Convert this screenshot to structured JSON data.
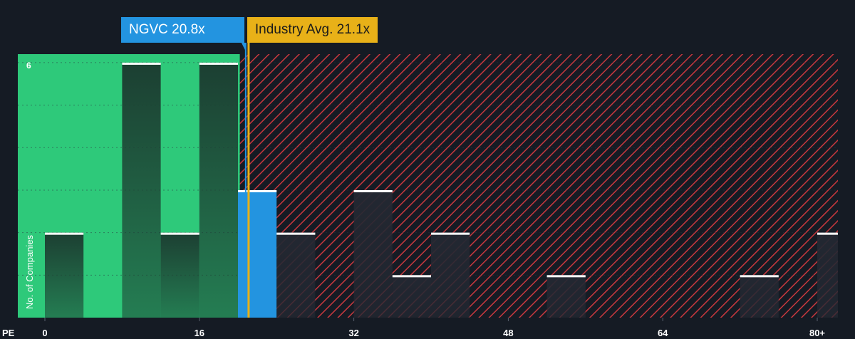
{
  "colors": {
    "background": "#151b24",
    "undervalued": "#2ec97a",
    "overvalued": "#c8383e",
    "company": "#2394e0",
    "industry": "#e8b118",
    "bar": "#1f4436",
    "bar_over": "#252a33",
    "bar_top": "#ffffff",
    "grid": "#2a3340",
    "text": "#ffffff"
  },
  "callouts": {
    "company_label": "NGVC 20.8x",
    "industry_label": "Industry Avg. 21.1x"
  },
  "chart_data": {
    "type": "bar",
    "title": "",
    "xlabel": "PE",
    "ylabel": "No. of Companies",
    "x_ticks": [
      0,
      16,
      32,
      48,
      64,
      80
    ],
    "x_tick_labels": [
      "0",
      "16",
      "32",
      "48",
      "64",
      "80+"
    ],
    "y_ticks": [
      6
    ],
    "y_tick_labels": [
      "6"
    ],
    "xlim": [
      0,
      82
    ],
    "ylim": [
      0,
      6.2
    ],
    "bin_width": 4,
    "bins": [
      {
        "start": 0,
        "end": 4,
        "count": 2
      },
      {
        "start": 4,
        "end": 8,
        "count": 0
      },
      {
        "start": 8,
        "end": 12,
        "count": 6
      },
      {
        "start": 12,
        "end": 16,
        "count": 2
      },
      {
        "start": 16,
        "end": 20,
        "count": 6
      },
      {
        "start": 20,
        "end": 24,
        "count": 3,
        "highlight": true
      },
      {
        "start": 24,
        "end": 28,
        "count": 2
      },
      {
        "start": 28,
        "end": 32,
        "count": 0
      },
      {
        "start": 32,
        "end": 36,
        "count": 3
      },
      {
        "start": 36,
        "end": 40,
        "count": 1
      },
      {
        "start": 40,
        "end": 44,
        "count": 2
      },
      {
        "start": 44,
        "end": 48,
        "count": 0
      },
      {
        "start": 48,
        "end": 52,
        "count": 0
      },
      {
        "start": 52,
        "end": 56,
        "count": 1
      },
      {
        "start": 56,
        "end": 60,
        "count": 0
      },
      {
        "start": 60,
        "end": 64,
        "count": 0
      },
      {
        "start": 64,
        "end": 68,
        "count": 0
      },
      {
        "start": 68,
        "end": 72,
        "count": 0
      },
      {
        "start": 72,
        "end": 76,
        "count": 1
      },
      {
        "start": 76,
        "end": 80,
        "count": 0
      },
      {
        "start": 80,
        "end": 84,
        "count": 2
      }
    ],
    "company": {
      "name": "NGVC",
      "value": 20.8
    },
    "industry_avg": {
      "value": 21.1
    },
    "fair_range_end": 20.2
  }
}
